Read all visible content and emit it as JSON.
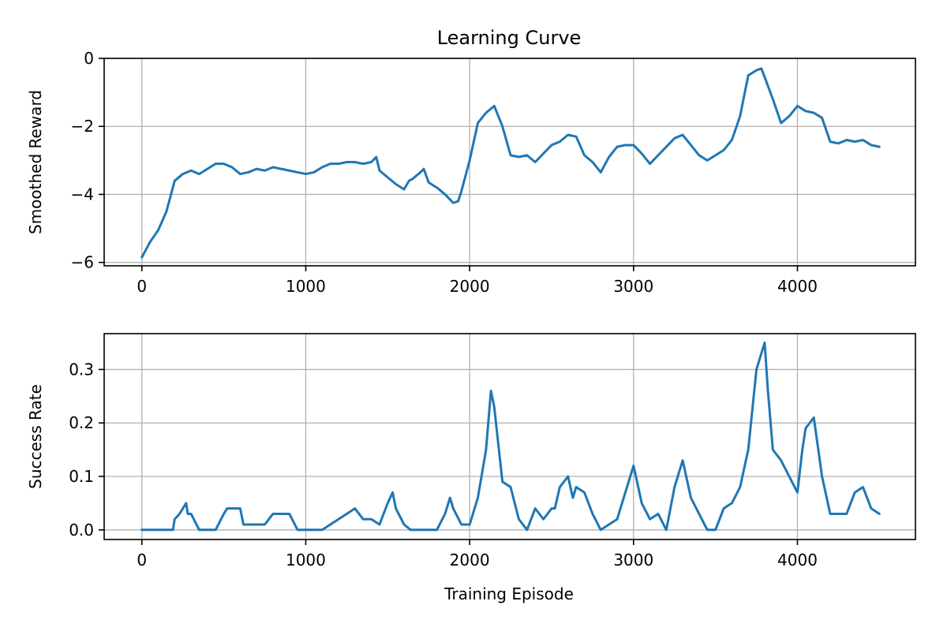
{
  "title": "Learning Curve",
  "xlabel": "Training Episode",
  "colors": {
    "series": "#1f77b4"
  },
  "chart_data": [
    {
      "type": "line",
      "ylabel": "Smoothed Reward",
      "xlim": [
        -230,
        4720
      ],
      "ylim": [
        -6.1,
        0
      ],
      "xticks": [
        0,
        1000,
        2000,
        3000,
        4000
      ],
      "xtick_labels": [
        "0",
        "1000",
        "2000",
        "3000",
        "4000"
      ],
      "yticks": [
        0,
        -2,
        -4,
        -6
      ],
      "ytick_labels": [
        "0",
        "−2",
        "−4",
        "−6"
      ],
      "grid": true,
      "series": [
        {
          "x": [
            0,
            50,
            100,
            150,
            200,
            250,
            300,
            350,
            400,
            450,
            500,
            550,
            600,
            650,
            700,
            750,
            800,
            850,
            900,
            950,
            1000,
            1050,
            1100,
            1150,
            1200,
            1250,
            1300,
            1350,
            1400,
            1430,
            1450,
            1500,
            1550,
            1600,
            1630,
            1650,
            1700,
            1720,
            1750,
            1800,
            1850,
            1900,
            1930,
            1950,
            2000,
            2050,
            2100,
            2150,
            2200,
            2250,
            2300,
            2350,
            2400,
            2450,
            2500,
            2550,
            2600,
            2650,
            2700,
            2750,
            2800,
            2850,
            2900,
            2950,
            3000,
            3050,
            3100,
            3150,
            3200,
            3250,
            3300,
            3350,
            3400,
            3450,
            3500,
            3550,
            3600,
            3650,
            3700,
            3750,
            3780,
            3800,
            3850,
            3900,
            3950,
            4000,
            4050,
            4100,
            4150,
            4200,
            4250,
            4300,
            4350,
            4400,
            4450,
            4500
          ],
          "y": [
            -5.85,
            -5.4,
            -5.05,
            -4.5,
            -3.6,
            -3.4,
            -3.3,
            -3.4,
            -3.25,
            -3.1,
            -3.1,
            -3.2,
            -3.4,
            -3.35,
            -3.25,
            -3.3,
            -3.2,
            -3.25,
            -3.3,
            -3.35,
            -3.4,
            -3.35,
            -3.2,
            -3.1,
            -3.1,
            -3.05,
            -3.05,
            -3.1,
            -3.05,
            -2.9,
            -3.3,
            -3.5,
            -3.7,
            -3.85,
            -3.6,
            -3.55,
            -3.35,
            -3.25,
            -3.65,
            -3.8,
            -4.0,
            -4.25,
            -4.2,
            -3.9,
            -3.0,
            -1.9,
            -1.6,
            -1.4,
            -2.0,
            -2.85,
            -2.9,
            -2.85,
            -3.05,
            -2.8,
            -2.55,
            -2.45,
            -2.25,
            -2.3,
            -2.85,
            -3.05,
            -3.35,
            -2.9,
            -2.6,
            -2.55,
            -2.55,
            -2.8,
            -3.1,
            -2.85,
            -2.6,
            -2.35,
            -2.25,
            -2.55,
            -2.85,
            -3.0,
            -2.85,
            -2.7,
            -2.4,
            -1.7,
            -0.5,
            -0.35,
            -0.3,
            -0.55,
            -1.2,
            -1.9,
            -1.7,
            -1.4,
            -1.55,
            -1.6,
            -1.75,
            -2.45,
            -2.5,
            -2.4,
            -2.45,
            -2.4,
            -2.55,
            -2.6
          ]
        }
      ]
    },
    {
      "type": "line",
      "ylabel": "Success Rate",
      "xlim": [
        -230,
        4720
      ],
      "ylim": [
        -0.018,
        0.367
      ],
      "xticks": [
        0,
        1000,
        2000,
        3000,
        4000
      ],
      "xtick_labels": [
        "0",
        "1000",
        "2000",
        "3000",
        "4000"
      ],
      "yticks": [
        0.0,
        0.1,
        0.2,
        0.3
      ],
      "ytick_labels": [
        "0.0",
        "0.1",
        "0.2",
        "0.3"
      ],
      "grid": true,
      "series": [
        {
          "x": [
            0,
            100,
            190,
            200,
            230,
            270,
            280,
            300,
            350,
            380,
            450,
            500,
            520,
            600,
            620,
            700,
            750,
            800,
            820,
            850,
            900,
            950,
            990,
            1000,
            1100,
            1200,
            1250,
            1300,
            1350,
            1400,
            1450,
            1500,
            1530,
            1550,
            1600,
            1640,
            1700,
            1800,
            1850,
            1880,
            1900,
            1950,
            2000,
            2050,
            2100,
            2130,
            2150,
            2200,
            2250,
            2300,
            2350,
            2400,
            2450,
            2500,
            2520,
            2550,
            2600,
            2630,
            2650,
            2700,
            2750,
            2800,
            2850,
            2900,
            2950,
            2980,
            3000,
            3050,
            3100,
            3150,
            3200,
            3250,
            3280,
            3300,
            3350,
            3400,
            3450,
            3500,
            3550,
            3600,
            3650,
            3700,
            3750,
            3780,
            3800,
            3820,
            3850,
            3900,
            3950,
            4000,
            4030,
            4050,
            4100,
            4150,
            4200,
            4250,
            4300,
            4350,
            4400,
            4450,
            4500
          ],
          "y": [
            0,
            0,
            0,
            0.02,
            0.03,
            0.05,
            0.03,
            0.03,
            0,
            0,
            0,
            0.03,
            0.04,
            0.04,
            0.01,
            0.01,
            0.01,
            0.03,
            0.03,
            0.03,
            0.03,
            0,
            0,
            0,
            0,
            0.02,
            0.03,
            0.04,
            0.02,
            0.02,
            0.01,
            0.05,
            0.07,
            0.04,
            0.01,
            0,
            0,
            0,
            0.03,
            0.06,
            0.04,
            0.01,
            0.01,
            0.06,
            0.15,
            0.26,
            0.23,
            0.09,
            0.08,
            0.02,
            0,
            0.04,
            0.02,
            0.04,
            0.04,
            0.08,
            0.1,
            0.06,
            0.08,
            0.07,
            0.03,
            0,
            0.01,
            0.02,
            0.07,
            0.1,
            0.12,
            0.05,
            0.02,
            0.03,
            0,
            0.08,
            0.11,
            0.13,
            0.06,
            0.03,
            0,
            0,
            0.04,
            0.05,
            0.08,
            0.15,
            0.3,
            0.33,
            0.35,
            0.26,
            0.15,
            0.13,
            0.1,
            0.07,
            0.15,
            0.19,
            0.21,
            0.1,
            0.03,
            0.03,
            0.03,
            0.07,
            0.08,
            0.04,
            0.03
          ]
        }
      ]
    }
  ]
}
